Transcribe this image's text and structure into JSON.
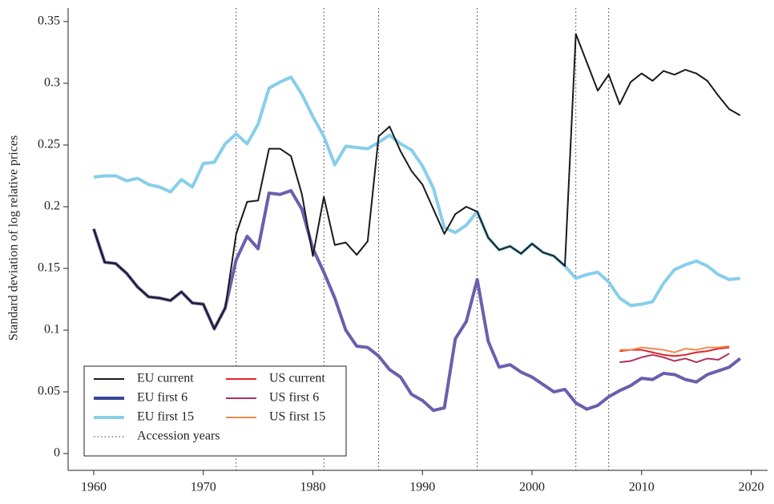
{
  "chart_data": {
    "type": "line",
    "y_label": "Standard deviation of log relative prices",
    "xlim": [
      1957.66,
      2021.5
    ],
    "ylim": [
      -0.0136,
      0.361
    ],
    "xticks": [
      1960,
      1970,
      1980,
      1990,
      2000,
      2010,
      2020
    ],
    "yticks": [
      0,
      0.05,
      0.1,
      0.15,
      0.2,
      0.25,
      0.3,
      0.35
    ],
    "legend": "lower left",
    "accession": {
      "name": "Accession years",
      "color": "#333333",
      "years": [
        1973,
        1981,
        1986,
        1995,
        2004,
        2007
      ]
    },
    "series": [
      {
        "name": "EU current",
        "color": "#1a1a1a",
        "width": 2,
        "x": [
          1960,
          1961,
          1962,
          1963,
          1964,
          1965,
          1966,
          1967,
          1968,
          1969,
          1970,
          1971,
          1972,
          1973,
          1974,
          1975,
          1976,
          1977,
          1978,
          1979,
          1980,
          1981,
          1982,
          1983,
          1984,
          1985,
          1986,
          1987,
          1988,
          1989,
          1990,
          1991,
          1992,
          1993,
          1994,
          1995,
          1996,
          1997,
          1998,
          1999,
          2000,
          2001,
          2002,
          2003,
          2004,
          2005,
          2006,
          2007,
          2008,
          2009,
          2010,
          2011,
          2012,
          2013,
          2014,
          2015,
          2016,
          2017,
          2018,
          2019
        ],
        "values": [
          0.182,
          0.155,
          0.154,
          0.146,
          0.135,
          0.127,
          0.126,
          0.124,
          0.131,
          0.122,
          0.121,
          0.101,
          0.118,
          0.178,
          0.204,
          0.205,
          0.247,
          0.247,
          0.241,
          0.21,
          0.16,
          0.208,
          0.169,
          0.171,
          0.161,
          0.172,
          0.257,
          0.265,
          0.245,
          0.229,
          0.218,
          0.198,
          0.178,
          0.194,
          0.2,
          0.196,
          0.175,
          0.165,
          0.168,
          0.162,
          0.17,
          0.163,
          0.16,
          0.152,
          0.34,
          0.317,
          0.294,
          0.307,
          0.283,
          0.301,
          0.308,
          0.302,
          0.31,
          0.307,
          0.311,
          0.308,
          0.302,
          0.29,
          0.279,
          0.274
        ]
      },
      {
        "name": "EU first 6",
        "color": "#6a5fae",
        "legend_color": "#34489a",
        "width": 4,
        "x": [
          1960,
          1961,
          1962,
          1963,
          1964,
          1965,
          1966,
          1967,
          1968,
          1969,
          1970,
          1971,
          1972,
          1973,
          1974,
          1975,
          1976,
          1977,
          1978,
          1979,
          1980,
          1981,
          1982,
          1983,
          1984,
          1985,
          1986,
          1987,
          1988,
          1989,
          1990,
          1991,
          1992,
          1993,
          1994,
          1995,
          1996,
          1997,
          1998,
          1999,
          2000,
          2001,
          2002,
          2003,
          2004,
          2005,
          2006,
          2007,
          2008,
          2009,
          2010,
          2011,
          2012,
          2013,
          2014,
          2015,
          2016,
          2017,
          2018,
          2019
        ],
        "values": [
          0.182,
          0.155,
          0.154,
          0.146,
          0.135,
          0.127,
          0.126,
          0.124,
          0.131,
          0.122,
          0.121,
          0.101,
          0.118,
          0.157,
          0.176,
          0.166,
          0.211,
          0.21,
          0.213,
          0.198,
          0.166,
          0.147,
          0.126,
          0.1,
          0.087,
          0.086,
          0.079,
          0.068,
          0.062,
          0.048,
          0.043,
          0.035,
          0.037,
          0.093,
          0.107,
          0.141,
          0.091,
          0.07,
          0.072,
          0.066,
          0.062,
          0.056,
          0.05,
          0.052,
          0.041,
          0.036,
          0.039,
          0.046,
          0.051,
          0.055,
          0.061,
          0.06,
          0.065,
          0.064,
          0.06,
          0.058,
          0.064,
          0.067,
          0.07,
          0.077
        ]
      },
      {
        "name": "EU first 15",
        "color": "#87ceeb",
        "width": 4,
        "x": [
          1960,
          1961,
          1962,
          1963,
          1964,
          1965,
          1966,
          1967,
          1968,
          1969,
          1970,
          1971,
          1972,
          1973,
          1974,
          1975,
          1976,
          1977,
          1978,
          1979,
          1980,
          1981,
          1982,
          1983,
          1984,
          1985,
          1986,
          1987,
          1988,
          1989,
          1990,
          1991,
          1992,
          1993,
          1994,
          1995,
          1996,
          1997,
          1998,
          1999,
          2000,
          2001,
          2002,
          2003,
          2004,
          2005,
          2006,
          2007,
          2008,
          2009,
          2010,
          2011,
          2012,
          2013,
          2014,
          2015,
          2016,
          2017,
          2018,
          2019
        ],
        "values": [
          0.224,
          0.225,
          0.225,
          0.221,
          0.223,
          0.218,
          0.216,
          0.212,
          0.222,
          0.216,
          0.235,
          0.236,
          0.251,
          0.259,
          0.251,
          0.267,
          0.296,
          0.301,
          0.305,
          0.291,
          0.273,
          0.257,
          0.234,
          0.249,
          0.248,
          0.247,
          0.252,
          0.258,
          0.251,
          0.246,
          0.233,
          0.215,
          0.183,
          0.179,
          0.185,
          0.196,
          0.175,
          0.165,
          0.168,
          0.162,
          0.17,
          0.163,
          0.16,
          0.152,
          0.142,
          0.145,
          0.147,
          0.139,
          0.126,
          0.12,
          0.121,
          0.123,
          0.138,
          0.149,
          0.153,
          0.156,
          0.152,
          0.145,
          0.141,
          0.142
        ]
      },
      {
        "name": "US current",
        "color": "#e0242a",
        "width": 2,
        "x": [
          2008,
          2009,
          2010,
          2011,
          2012,
          2013,
          2014,
          2015,
          2016,
          2017,
          2018
        ],
        "values": [
          0.083,
          0.084,
          0.084,
          0.082,
          0.08,
          0.079,
          0.08,
          0.082,
          0.083,
          0.085,
          0.086
        ]
      },
      {
        "name": "US first 6",
        "color": "#b03060",
        "width": 2,
        "x": [
          2008,
          2009,
          2010,
          2011,
          2012,
          2013,
          2014,
          2015,
          2016,
          2017,
          2018
        ],
        "values": [
          0.074,
          0.075,
          0.078,
          0.08,
          0.078,
          0.075,
          0.077,
          0.074,
          0.077,
          0.076,
          0.081
        ]
      },
      {
        "name": "US first 15",
        "color": "#f08a50",
        "width": 2,
        "x": [
          2008,
          2009,
          2010,
          2011,
          2012,
          2013,
          2014,
          2015,
          2016,
          2017,
          2018
        ],
        "values": [
          0.084,
          0.084,
          0.086,
          0.085,
          0.084,
          0.082,
          0.085,
          0.084,
          0.086,
          0.086,
          0.087
        ]
      }
    ]
  }
}
